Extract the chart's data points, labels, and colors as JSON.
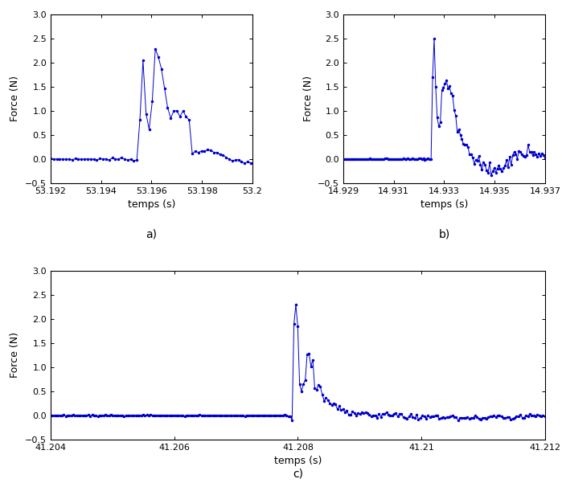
{
  "color": "#0000CC",
  "markersize": 3,
  "linewidth": 0.7,
  "subplot_a": {
    "xlabel": "temps (s)",
    "ylabel": "Force (N)",
    "label": "a)",
    "xlim": [
      53.192,
      53.2
    ],
    "ylim": [
      -0.5,
      3.0
    ],
    "xticks": [
      53.192,
      53.194,
      53.196,
      53.198,
      53.2
    ],
    "xtick_labels": [
      "53.192",
      "53.194",
      "53.196",
      "53.198",
      "53.2"
    ],
    "yticks": [
      -0.5,
      0,
      0.5,
      1,
      1.5,
      2,
      2.5,
      3
    ],
    "fs": 8192,
    "t_impact": 53.1955,
    "duration": 0.009
  },
  "subplot_b": {
    "xlabel": "temps (s)",
    "ylabel": "Force (N)",
    "label": "b)",
    "xlim": [
      14.929,
      14.937
    ],
    "ylim": [
      -0.5,
      3.0
    ],
    "xticks": [
      14.929,
      14.931,
      14.933,
      14.935,
      14.937
    ],
    "xtick_labels": [
      "14.929",
      "14.931",
      "14.933",
      "14.935",
      "14.937"
    ],
    "yticks": [
      -0.5,
      0,
      0.5,
      1,
      1.5,
      2,
      2.5,
      3
    ],
    "fs": 16384,
    "t_impact": 14.9325,
    "duration": 0.009
  },
  "subplot_c": {
    "xlabel": "temps (s)",
    "ylabel": "Force (N)",
    "label": "c)",
    "xlim": [
      41.204,
      41.212
    ],
    "ylim": [
      -0.5,
      3.0
    ],
    "xticks": [
      41.204,
      41.206,
      41.208,
      41.21,
      41.212
    ],
    "xtick_labels": [
      "41.204",
      "41.206",
      "41.208",
      "41.21",
      "41.212"
    ],
    "yticks": [
      -0.5,
      0,
      0.5,
      1,
      1.5,
      2,
      2.5,
      3
    ],
    "fs": 32768,
    "t_impact": 41.2079,
    "duration": 0.009
  }
}
